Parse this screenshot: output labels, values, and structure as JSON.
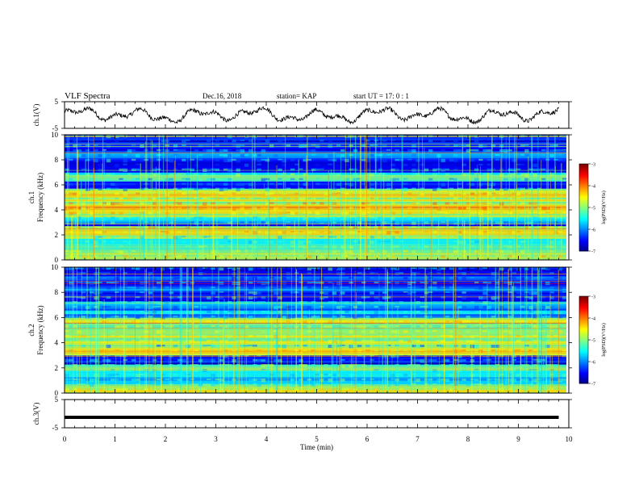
{
  "header": {
    "title": "VLF Spectra",
    "date": "Dec.16, 2018",
    "station": "station= KAP",
    "start": "start  UT =   17: 0  : 1"
  },
  "chart_data": [
    {
      "type": "line",
      "panel": "ch1-waveform",
      "ylabel": "ch.1(V)",
      "ylim": [
        -5,
        5
      ],
      "yticks": [
        "5",
        "-5"
      ],
      "xlim": [
        0,
        10
      ],
      "series": [
        {
          "color": "#000000",
          "x_range": [
            0,
            9.8
          ],
          "pattern": "noisy waveform, roughly between -3 and 4 V"
        }
      ]
    },
    {
      "type": "heatmap",
      "panel": "ch1-spectrogram",
      "ylabel": "ch.1  Frequency (kHz)",
      "ylim": [
        0,
        10
      ],
      "yticks": [
        "0",
        "2",
        "4",
        "6",
        "8",
        "10"
      ],
      "xlim": [
        0,
        10
      ],
      "colorbar": {
        "label": "log(PSD)(V²/Hz)",
        "range": [
          -7,
          -3
        ],
        "ticks": [
          "-3",
          "-4",
          "-5",
          "-6",
          "-7"
        ]
      },
      "bands_khz": [
        {
          "f": 0.2,
          "level": -4.5
        },
        {
          "f": 0.5,
          "level": -4.8
        },
        {
          "f": 1.0,
          "level": -5.2
        },
        {
          "f": 1.5,
          "level": -5.4
        },
        {
          "f": 2.0,
          "level": -4.6
        },
        {
          "f": 2.3,
          "level": -4.3
        },
        {
          "f": 3.2,
          "level": -5.4
        },
        {
          "f": 3.8,
          "level": -4.4
        },
        {
          "f": 4.2,
          "level": -4.2
        },
        {
          "f": 4.8,
          "level": -4.6
        },
        {
          "f": 5.3,
          "level": -4.3
        },
        {
          "f": 6.0,
          "level": -6.2
        },
        {
          "f": 6.6,
          "level": -5.0
        },
        {
          "f": 7.6,
          "level": -6.4
        },
        {
          "f": 8.4,
          "level": -5.8
        },
        {
          "f": 9.3,
          "level": -6.2
        }
      ]
    },
    {
      "type": "heatmap",
      "panel": "ch2-spectrogram",
      "ylabel": "ch.2  Frequency (kHz)",
      "ylim": [
        0,
        10
      ],
      "yticks": [
        "0",
        "2",
        "4",
        "6",
        "8",
        "10"
      ],
      "xlim": [
        0,
        10
      ],
      "colorbar": {
        "label": "log(PSD)(V²/Hz)",
        "range": [
          -7,
          -3
        ],
        "ticks": [
          "-3",
          "-4",
          "-5",
          "-6",
          "-7"
        ]
      },
      "bands_khz": [
        {
          "f": 0.3,
          "level": -4.6
        },
        {
          "f": 0.8,
          "level": -5.3
        },
        {
          "f": 1.5,
          "level": -5.5
        },
        {
          "f": 2.0,
          "level": -5.0
        },
        {
          "f": 3.3,
          "level": -4.4
        },
        {
          "f": 4.0,
          "level": -4.6
        },
        {
          "f": 4.5,
          "level": -4.6
        },
        {
          "f": 5.0,
          "level": -4.8
        },
        {
          "f": 5.6,
          "level": -4.5
        },
        {
          "f": 6.4,
          "level": -5.6
        },
        {
          "f": 7.0,
          "level": -5.6
        },
        {
          "f": 8.2,
          "level": -6.0
        },
        {
          "f": 9.2,
          "level": -6.2
        }
      ]
    },
    {
      "type": "line",
      "panel": "ch3-waveform",
      "ylabel": "ch.3(V)",
      "ylim": [
        -5,
        5
      ],
      "yticks": [
        "5",
        "-5"
      ],
      "xlim": [
        0,
        10
      ],
      "series": [
        {
          "color": "#000000",
          "x_range": [
            0,
            9.8
          ],
          "value": -1.3,
          "pattern": "flat"
        }
      ]
    }
  ],
  "xaxis": {
    "label": "Time (min)",
    "ticks": [
      "0",
      "1",
      "2",
      "3",
      "4",
      "5",
      "6",
      "7",
      "8",
      "9",
      "10"
    ]
  },
  "colors": {
    "background": "#ffffff",
    "trace": "#000000"
  }
}
